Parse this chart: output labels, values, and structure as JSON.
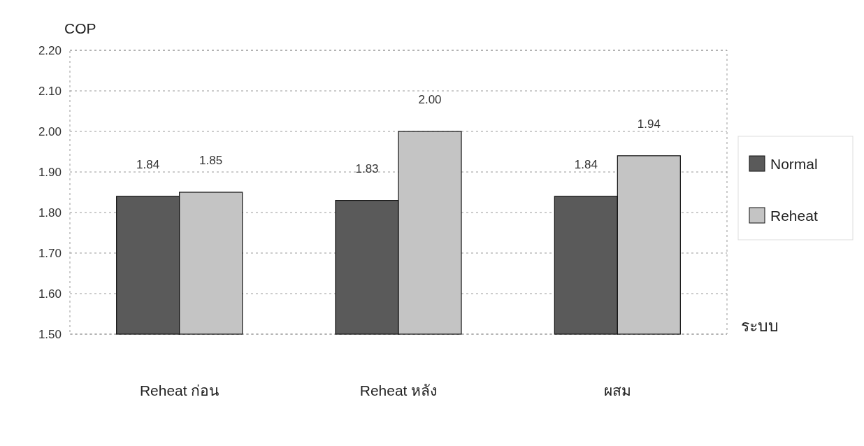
{
  "chart_data": {
    "type": "bar",
    "ylabel": "COP",
    "xlabel": "ระบบ",
    "categories": [
      "Reheat ก่อน",
      "Reheat หลัง",
      "ผสม"
    ],
    "series": [
      {
        "name": "Normal",
        "color": "#5a5a5a",
        "values": [
          1.84,
          1.83,
          1.84
        ],
        "value_labels": [
          "1.84",
          "1.83",
          "1.84"
        ]
      },
      {
        "name": "Reheat",
        "color": "#c4c4c4",
        "values": [
          1.85,
          2.0,
          1.94
        ],
        "value_labels": [
          "1.85",
          "2.00",
          "1.94"
        ]
      }
    ],
    "ylim": [
      1.5,
      2.2
    ],
    "yticks": [
      {
        "value": 1.5,
        "label": "1.50"
      },
      {
        "value": 1.6,
        "label": "1.60"
      },
      {
        "value": 1.7,
        "label": "1.70"
      },
      {
        "value": 1.8,
        "label": "1.80"
      },
      {
        "value": 1.9,
        "label": "1.90"
      },
      {
        "value": 2.0,
        "label": "2.00"
      },
      {
        "value": 2.1,
        "label": "2.10"
      },
      {
        "value": 2.2,
        "label": "2.20"
      }
    ],
    "grid": "y",
    "legend": "right"
  }
}
